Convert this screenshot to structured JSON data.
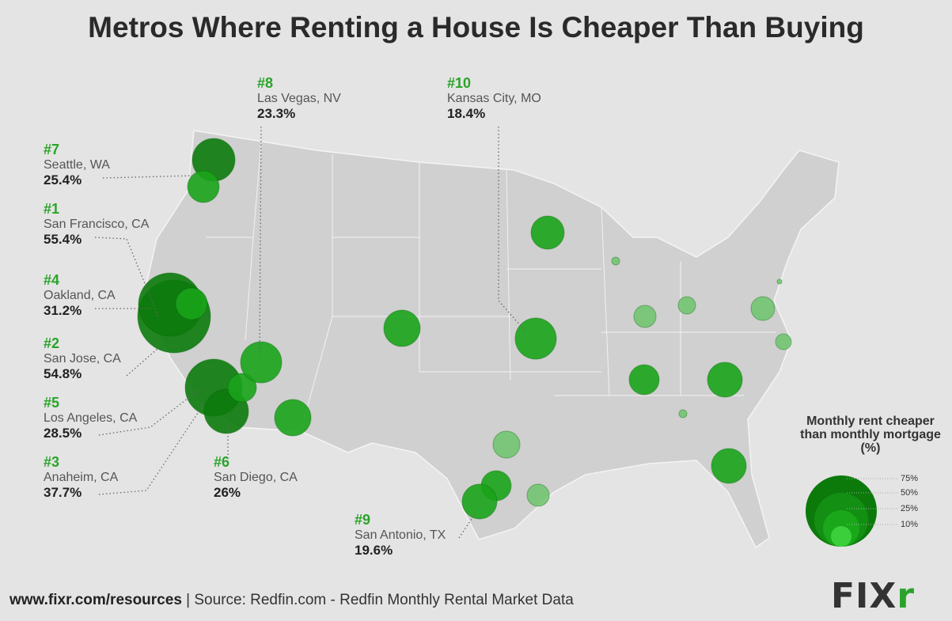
{
  "title": "Metros Where Renting a House Is Cheaper Than Buying",
  "metros": [
    {
      "rank": "#1",
      "city": "San Francisco, CA",
      "pct": "55.4%"
    },
    {
      "rank": "#2",
      "city": "San Jose, CA",
      "pct": "54.8%"
    },
    {
      "rank": "#3",
      "city": "Anaheim, CA",
      "pct": "37.7%"
    },
    {
      "rank": "#4",
      "city": "Oakland, CA",
      "pct": "31.2%"
    },
    {
      "rank": "#5",
      "city": "Los Angeles, CA",
      "pct": "28.5%"
    },
    {
      "rank": "#6",
      "city": "San Diego, CA",
      "pct": "26%"
    },
    {
      "rank": "#7",
      "city": "Seattle, WA",
      "pct": "25.4%"
    },
    {
      "rank": "#8",
      "city": "Las Vegas, NV",
      "pct": "23.3%"
    },
    {
      "rank": "#9",
      "city": "San Antonio, TX",
      "pct": "19.6%"
    },
    {
      "rank": "#10",
      "city": "Kansas City, MO",
      "pct": "18.4%"
    }
  ],
  "legend": {
    "title": "Monthly rent cheaper than monthly mortgage (%)",
    "levels": [
      "75%",
      "50%",
      "25%",
      "10%"
    ],
    "colors": [
      "#0b7a0b",
      "#138f13",
      "#1aa81a",
      "#3ccf3c"
    ]
  },
  "colors": {
    "bubble_dark": "#0b7a0b",
    "bubble_mid": "#1aa31a",
    "bubble_light": "#6cc46c",
    "map": "#d2d2d2",
    "accent": "#2aa32a"
  },
  "footer": {
    "url": "www.fixr.com/resources",
    "source": "| Source: Redfin.com - Redfin Monthly Rental Market Data"
  },
  "logo": {
    "text": "FIX",
    "accent": "r"
  }
}
